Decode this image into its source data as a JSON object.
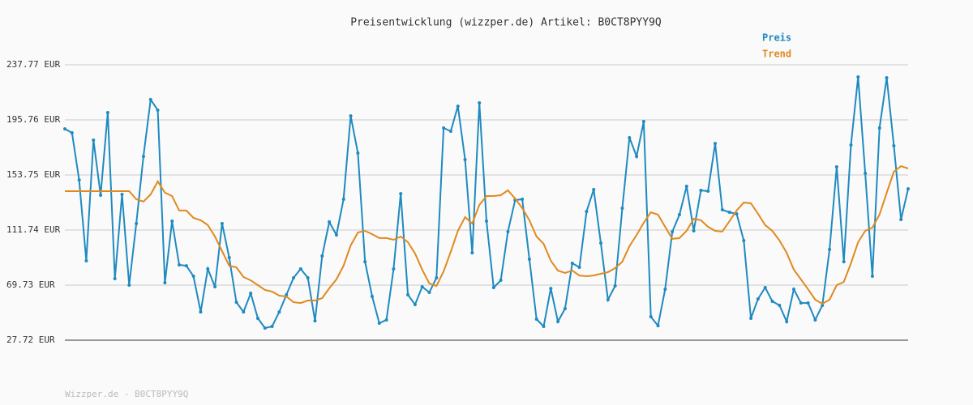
{
  "chart_data": {
    "type": "line",
    "title": "Preisentwicklung (wizzper.de) Artikel: B0CT8PYY9Q",
    "footer": "Wizzper.de - B0CT8PYY9Q",
    "legend": "top-right",
    "grid": true,
    "ylim": [
      27.72,
      237.77
    ],
    "yticks": [
      {
        "value": 27.72,
        "label": "27.72 EUR"
      },
      {
        "value": 69.73,
        "label": "69.73 EUR"
      },
      {
        "value": 111.74,
        "label": "111.74 EUR"
      },
      {
        "value": 153.75,
        "label": "153.75 EUR"
      },
      {
        "value": 195.76,
        "label": "195.76 EUR"
      },
      {
        "value": 237.77,
        "label": "237.77 EUR"
      }
    ],
    "series": [
      {
        "name": "Preis",
        "color": "#1f8ac0",
        "values": [
          188.9,
          185.9,
          150.0,
          88.3,
          180.3,
          138.3,
          201.3,
          74.7,
          138.9,
          69.7,
          116.7,
          167.9,
          211.2,
          203.2,
          71.6,
          118.5,
          85.2,
          84.5,
          76.5,
          49.3,
          82.1,
          68.5,
          116.7,
          90.7,
          56.7,
          49.3,
          63.5,
          44.4,
          37.0,
          38.2,
          49.3,
          62.3,
          75.3,
          82.1,
          75.3,
          42.5,
          92.0,
          117.9,
          108.0,
          135.2,
          198.8,
          170.4,
          87.6,
          61.1,
          40.7,
          43.2,
          82.1,
          139.5,
          62.3,
          54.9,
          68.5,
          64.2,
          75.3,
          189.6,
          187.1,
          206.2,
          165.5,
          94.4,
          208.7,
          118.5,
          67.9,
          73.4,
          110.5,
          134.6,
          135.2,
          89.5,
          43.8,
          38.2,
          67.2,
          41.9,
          51.8,
          86.4,
          83.3,
          125.9,
          142.6,
          101.8,
          58.6,
          69.1,
          128.4,
          182.2,
          167.9,
          194.5,
          45.6,
          38.8,
          66.6,
          110.5,
          123.5,
          145.1,
          111.1,
          142.0,
          141.4,
          177.8,
          127.2,
          125.3,
          124.1,
          103.7,
          44.4,
          59.2,
          67.9,
          57.4,
          54.3,
          41.9,
          66.6,
          56.1,
          56.1,
          43.2,
          54.3,
          96.9,
          159.9,
          87.6,
          176.6,
          228.5,
          155.0,
          76.5,
          189.6,
          227.9,
          176.0,
          119.8,
          143.2
        ]
      },
      {
        "name": "Trend",
        "color": "#e08a1e",
        "values": [
          141.4,
          141.4,
          141.4,
          141.4,
          141.4,
          141.4,
          141.4,
          141.4,
          141.4,
          141.4,
          135.2,
          133.4,
          138.9,
          148.8,
          140.2,
          137.7,
          126.6,
          126.6,
          121.0,
          119.2,
          115.5,
          106.8,
          95.7,
          84.5,
          83.3,
          75.9,
          73.4,
          69.7,
          66.0,
          64.8,
          61.7,
          61.1,
          56.7,
          56.1,
          58.0,
          58.0,
          59.8,
          67.3,
          74.1,
          84.5,
          100.0,
          109.9,
          111.1,
          108.6,
          105.6,
          105.6,
          104.3,
          106.8,
          102.5,
          93.8,
          81.5,
          71.0,
          69.1,
          80.2,
          95.1,
          111.1,
          121.6,
          116.7,
          130.9,
          137.7,
          137.7,
          138.3,
          142.0,
          135.8,
          128.4,
          119.2,
          106.8,
          101.2,
          88.3,
          80.8,
          79.0,
          80.8,
          77.1,
          76.5,
          77.1,
          78.4,
          79.6,
          82.7,
          87.6,
          99.4,
          108.0,
          117.3,
          125.3,
          123.5,
          114.2,
          105.0,
          105.6,
          111.1,
          120.4,
          119.2,
          114.2,
          111.1,
          110.5,
          118.5,
          126.6,
          132.7,
          132.1,
          124.1,
          115.5,
          111.1,
          103.7,
          94.4,
          81.5,
          74.1,
          66.6,
          58.6,
          55.5,
          58.6,
          69.7,
          72.2,
          86.4,
          102.5,
          111.1,
          113.6,
          123.5,
          140.2,
          156.2,
          160.5,
          158.7
        ]
      }
    ]
  }
}
